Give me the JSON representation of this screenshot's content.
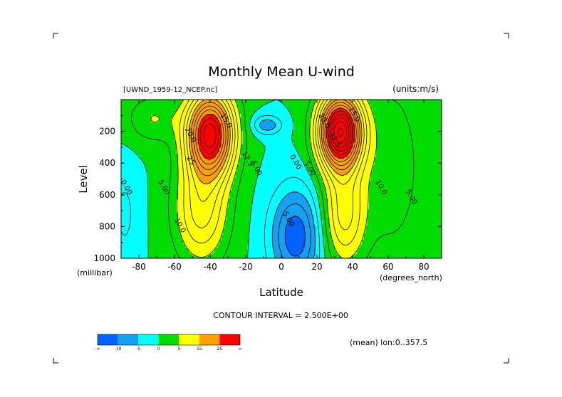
{
  "chart_data": {
    "type": "heatmap",
    "title": "Monthly Mean U-wind",
    "dataset_label": "[UWND_1959-12_NCEP.nc]",
    "units_label": "(units:m/s)",
    "xlabel": "Latitude",
    "xunit": "(degrees_north)",
    "ylabel": "Level",
    "yunit": "(millibar)",
    "xlim": [
      -90,
      90
    ],
    "ylim": [
      1000,
      0
    ],
    "xticks": [
      -80,
      -60,
      -40,
      -20,
      0,
      20,
      40,
      60,
      80
    ],
    "yticks": [
      200,
      400,
      600,
      800,
      1000
    ],
    "contour_interval_text": "CONTOUR INTERVAL = 2.500E+00",
    "contour_interval": 2.5,
    "mean_label": "(mean) lon:0..357.5",
    "contour_labels": [
      {
        "text": "20.0",
        "x": -52,
        "y": 230
      },
      {
        "text": "25",
        "x": -52,
        "y": 390
      },
      {
        "text": "15.0",
        "x": -32,
        "y": 140
      },
      {
        "text": "12.5",
        "x": -20,
        "y": 380
      },
      {
        "text": "5.00",
        "x": -15,
        "y": 440
      },
      {
        "text": "0.00",
        "x": -88,
        "y": 560
      },
      {
        "text": "5.00",
        "x": -67,
        "y": 560
      },
      {
        "text": "10.0",
        "x": -58,
        "y": 800
      },
      {
        "text": "0.00",
        "x": 7,
        "y": 400
      },
      {
        "text": "5.00",
        "x": 15,
        "y": 440
      },
      {
        "text": "5.00",
        "x": 3,
        "y": 760
      },
      {
        "text": "20.0",
        "x": 23,
        "y": 140
      },
      {
        "text": "15.0",
        "x": 40,
        "y": 100
      },
      {
        "text": "12.5",
        "x": 29,
        "y": 260
      },
      {
        "text": "10.0",
        "x": 55,
        "y": 560
      },
      {
        "text": "5.00",
        "x": 72,
        "y": 620
      }
    ],
    "jets": [
      {
        "lat": -40,
        "level": 200,
        "max": 30
      },
      {
        "lat": 32,
        "level": 200,
        "max": 35
      }
    ],
    "colorbar": {
      "colors": [
        "#0062ff",
        "#15a0f0",
        "#00ffff",
        "#00dc00",
        "#ffff00",
        "#ffa000",
        "#ff0000"
      ],
      "labels": [
        "-∞",
        "-10",
        "-5",
        "0",
        "5",
        "15",
        "25",
        "∞"
      ]
    }
  }
}
